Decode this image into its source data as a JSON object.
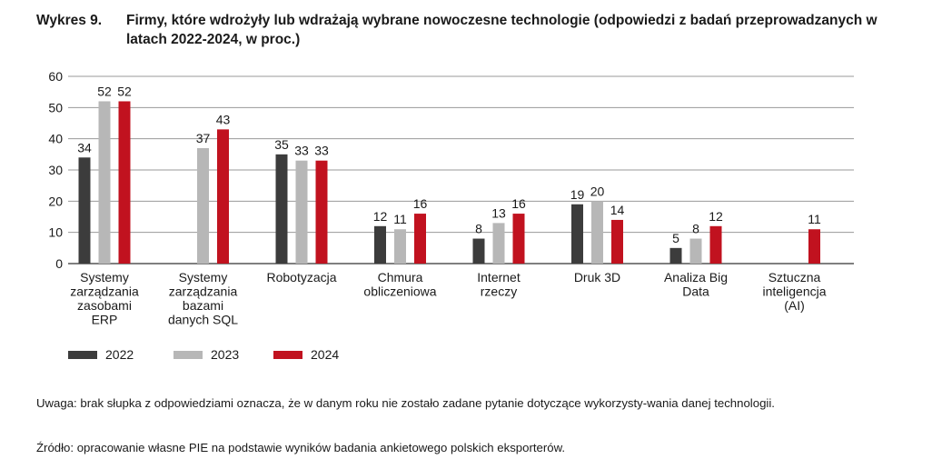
{
  "figure": {
    "number": "Wykres 9.",
    "title": "Firmy, które wdrożyły lub wdrażają wybrane nowoczesne technologie (odpowiedzi z badań przeprowadzanych w latach 2022-2024, w proc.)"
  },
  "colors": {
    "2022": "#3c3c3c",
    "2023": "#b7b7b7",
    "2024": "#c1121f"
  },
  "chart_data": {
    "type": "bar",
    "title": "",
    "xlabel": "",
    "ylabel": "",
    "ylim": [
      0,
      60
    ],
    "yticks": [
      0,
      10,
      20,
      30,
      40,
      50,
      60
    ],
    "grid": true,
    "legend_position": "bottom-left",
    "categories": [
      [
        "Systemy",
        "zarządzania",
        "zasobami",
        "ERP"
      ],
      [
        "Systemy",
        "zarządzania",
        "bazami",
        "danych SQL"
      ],
      [
        "Robotyzacja"
      ],
      [
        "Chmura",
        "obliczeniowa"
      ],
      [
        "Internet",
        "rzeczy"
      ],
      [
        "Druk 3D"
      ],
      [
        "Analiza Big",
        "Data"
      ],
      [
        "Sztuczna",
        "inteligencja",
        "(AI)"
      ]
    ],
    "series": [
      {
        "name": "2022",
        "values": [
          34,
          null,
          35,
          12,
          8,
          19,
          5,
          null
        ]
      },
      {
        "name": "2023",
        "values": [
          52,
          37,
          33,
          11,
          13,
          20,
          8,
          null
        ]
      },
      {
        "name": "2024",
        "values": [
          52,
          43,
          33,
          16,
          16,
          14,
          12,
          11
        ]
      }
    ]
  },
  "notes": {
    "remark": "Uwaga: brak słupka z odpowiedziami oznacza, że w danym roku nie zostało zadane pytanie dotyczące wykorzysty-wania danej technologii.",
    "source": "Źródło: opracowanie własne PIE na podstawie wyników badania ankietowego polskich eksporterów."
  }
}
